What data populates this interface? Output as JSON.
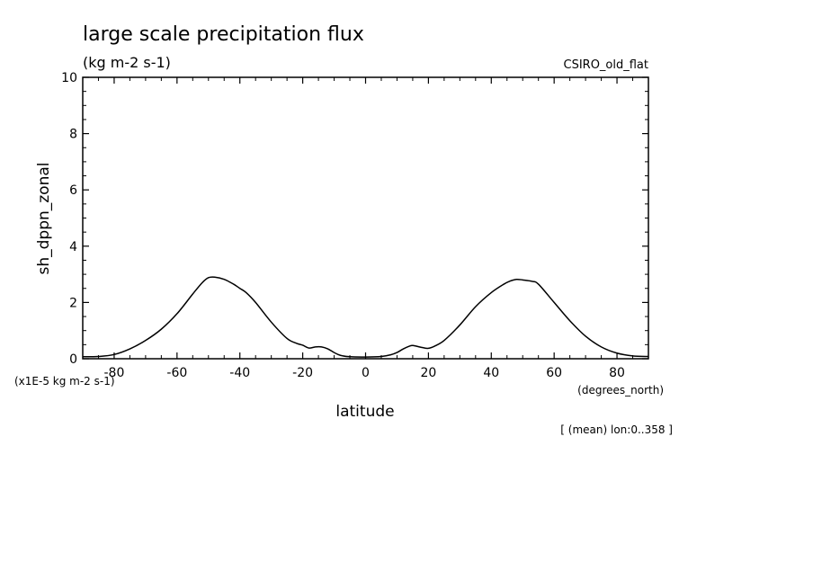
{
  "chart_data": {
    "type": "line",
    "title": "large scale precipitation flux",
    "subtitle": "(kg m-2 s-1)",
    "model_label": "CSIRO_old_flat",
    "xlabel": "latitude",
    "xunits": "(degrees_north)",
    "ylabel": "sh_dppn_zonal",
    "yscale_note": "(x1E-5 kg m-2 s-1)",
    "footnote": "[ (mean) lon:0..358 ]",
    "xlim": [
      -90,
      90
    ],
    "ylim": [
      0,
      10
    ],
    "x_ticks": [
      -80,
      -60,
      -40,
      -20,
      0,
      20,
      40,
      60,
      80
    ],
    "y_ticks": [
      0,
      2,
      4,
      6,
      8,
      10
    ],
    "grid": false,
    "series": [
      {
        "name": "sh_dppn_zonal",
        "x": [
          -90,
          -85,
          -80,
          -75,
          -70,
          -65,
          -60,
          -55,
          -52,
          -50,
          -48,
          -45,
          -42,
          -40,
          -38,
          -35,
          -30,
          -25,
          -22,
          -20,
          -18,
          -16,
          -14,
          -12,
          -10,
          -8,
          -5,
          0,
          5,
          8,
          10,
          12,
          14,
          15,
          16,
          18,
          20,
          22,
          25,
          30,
          35,
          40,
          44,
          46,
          48,
          50,
          53,
          55,
          60,
          65,
          70,
          75,
          80,
          85,
          90
        ],
        "values": [
          0.07,
          0.08,
          0.15,
          0.35,
          0.65,
          1.05,
          1.6,
          2.3,
          2.7,
          2.88,
          2.9,
          2.82,
          2.65,
          2.5,
          2.35,
          2.0,
          1.3,
          0.72,
          0.55,
          0.48,
          0.38,
          0.42,
          0.42,
          0.35,
          0.22,
          0.12,
          0.07,
          0.06,
          0.08,
          0.14,
          0.22,
          0.35,
          0.45,
          0.47,
          0.45,
          0.4,
          0.37,
          0.45,
          0.65,
          1.2,
          1.85,
          2.35,
          2.65,
          2.76,
          2.82,
          2.8,
          2.75,
          2.65,
          2.0,
          1.35,
          0.8,
          0.42,
          0.2,
          0.1,
          0.08
        ]
      }
    ]
  }
}
